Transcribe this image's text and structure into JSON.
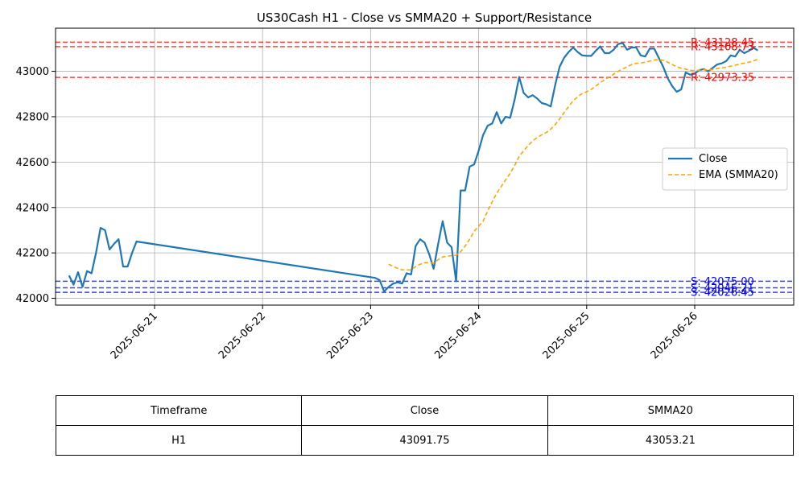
{
  "chart_data": {
    "type": "line",
    "title": "US30Cash H1 - Close vs SMMA20 + Support/Resistance",
    "xlabel": "",
    "ylabel": "",
    "x_range": [
      "2025-06-20T02:00",
      "2025-06-26T22:00"
    ],
    "ylim": [
      41970,
      43190
    ],
    "yticks": [
      42000,
      42200,
      42400,
      42600,
      42800,
      43000
    ],
    "xticks": [
      "2025-06-21",
      "2025-06-22",
      "2025-06-23",
      "2025-06-24",
      "2025-06-25",
      "2025-06-26"
    ],
    "grid": true,
    "legend_position": "center-right",
    "series": [
      {
        "name": "Close",
        "color": "#1f77b4",
        "style": "solid",
        "points": [
          [
            "2025-06-20T05:00",
            42100
          ],
          [
            "2025-06-20T06:00",
            42060
          ],
          [
            "2025-06-20T07:00",
            42115
          ],
          [
            "2025-06-20T08:00",
            42050
          ],
          [
            "2025-06-20T09:00",
            42120
          ],
          [
            "2025-06-20T10:00",
            42110
          ],
          [
            "2025-06-20T11:00",
            42200
          ],
          [
            "2025-06-20T12:00",
            42310
          ],
          [
            "2025-06-20T13:00",
            42300
          ],
          [
            "2025-06-20T14:00",
            42215
          ],
          [
            "2025-06-20T15:00",
            42240
          ],
          [
            "2025-06-20T16:00",
            42260
          ],
          [
            "2025-06-20T17:00",
            42140
          ],
          [
            "2025-06-20T18:00",
            42140
          ],
          [
            "2025-06-20T19:00",
            42200
          ],
          [
            "2025-06-20T20:00",
            42250
          ],
          [
            "2025-06-23T01:00",
            42090
          ],
          [
            "2025-06-23T02:00",
            42080
          ],
          [
            "2025-06-23T03:00",
            42030
          ],
          [
            "2025-06-23T04:00",
            42050
          ],
          [
            "2025-06-23T05:00",
            42065
          ],
          [
            "2025-06-23T06:00",
            42070
          ],
          [
            "2025-06-23T07:00",
            42065
          ],
          [
            "2025-06-23T08:00",
            42110
          ],
          [
            "2025-06-23T09:00",
            42105
          ],
          [
            "2025-06-23T10:00",
            42230
          ],
          [
            "2025-06-23T11:00",
            42260
          ],
          [
            "2025-06-23T12:00",
            42245
          ],
          [
            "2025-06-23T13:00",
            42195
          ],
          [
            "2025-06-23T14:00",
            42130
          ],
          [
            "2025-06-23T15:00",
            42240
          ],
          [
            "2025-06-23T16:00",
            42340
          ],
          [
            "2025-06-23T17:00",
            42245
          ],
          [
            "2025-06-23T18:00",
            42225
          ],
          [
            "2025-06-23T19:00",
            42075
          ],
          [
            "2025-06-23T20:00",
            42475
          ],
          [
            "2025-06-23T21:00",
            42475
          ],
          [
            "2025-06-23T22:00",
            42580
          ],
          [
            "2025-06-23T23:00",
            42590
          ],
          [
            "2025-06-24T00:00",
            42650
          ],
          [
            "2025-06-24T01:00",
            42720
          ],
          [
            "2025-06-24T02:00",
            42760
          ],
          [
            "2025-06-24T03:00",
            42770
          ],
          [
            "2025-06-24T04:00",
            42820
          ],
          [
            "2025-06-24T05:00",
            42770
          ],
          [
            "2025-06-24T06:00",
            42800
          ],
          [
            "2025-06-24T07:00",
            42795
          ],
          [
            "2025-06-24T08:00",
            42875
          ],
          [
            "2025-06-24T09:00",
            42975
          ],
          [
            "2025-06-24T10:00",
            42905
          ],
          [
            "2025-06-24T11:00",
            42885
          ],
          [
            "2025-06-24T12:00",
            42895
          ],
          [
            "2025-06-24T13:00",
            42880
          ],
          [
            "2025-06-24T14:00",
            42860
          ],
          [
            "2025-06-24T15:00",
            42855
          ],
          [
            "2025-06-24T16:00",
            42845
          ],
          [
            "2025-06-24T17:00",
            42940
          ],
          [
            "2025-06-24T18:00",
            43020
          ],
          [
            "2025-06-24T19:00",
            43060
          ],
          [
            "2025-06-24T20:00",
            43085
          ],
          [
            "2025-06-24T21:00",
            43105
          ],
          [
            "2025-06-24T22:00",
            43085
          ],
          [
            "2025-06-24T23:00",
            43070
          ],
          [
            "2025-06-25T00:00",
            43068
          ],
          [
            "2025-06-25T01:00",
            43068
          ],
          [
            "2025-06-25T02:00",
            43090
          ],
          [
            "2025-06-25T03:00",
            43110
          ],
          [
            "2025-06-25T04:00",
            43080
          ],
          [
            "2025-06-25T05:00",
            43080
          ],
          [
            "2025-06-25T06:00",
            43095
          ],
          [
            "2025-06-25T07:00",
            43120
          ],
          [
            "2025-06-25T08:00",
            43125
          ],
          [
            "2025-06-25T09:00",
            43095
          ],
          [
            "2025-06-25T10:00",
            43105
          ],
          [
            "2025-06-25T11:00",
            43105
          ],
          [
            "2025-06-25T12:00",
            43070
          ],
          [
            "2025-06-25T13:00",
            43065
          ],
          [
            "2025-06-25T14:00",
            43100
          ],
          [
            "2025-06-25T15:00",
            43100
          ],
          [
            "2025-06-25T16:00",
            43060
          ],
          [
            "2025-06-25T17:00",
            43020
          ],
          [
            "2025-06-25T18:00",
            42970
          ],
          [
            "2025-06-25T19:00",
            42935
          ],
          [
            "2025-06-25T20:00",
            42910
          ],
          [
            "2025-06-25T21:00",
            42920
          ],
          [
            "2025-06-25T22:00",
            42995
          ],
          [
            "2025-06-25T23:00",
            42985
          ],
          [
            "2025-06-26T00:00",
            42990
          ],
          [
            "2025-06-26T01:00",
            43005
          ],
          [
            "2025-06-26T02:00",
            43010
          ],
          [
            "2025-06-26T03:00",
            43000
          ],
          [
            "2025-06-26T04:00",
            43015
          ],
          [
            "2025-06-26T05:00",
            43030
          ],
          [
            "2025-06-26T06:00",
            43035
          ],
          [
            "2025-06-26T07:00",
            43045
          ],
          [
            "2025-06-26T08:00",
            43070
          ],
          [
            "2025-06-26T09:00",
            43065
          ],
          [
            "2025-06-26T10:00",
            43095
          ],
          [
            "2025-06-26T11:00",
            43080
          ],
          [
            "2025-06-26T12:00",
            43090
          ],
          [
            "2025-06-26T13:00",
            43105
          ],
          [
            "2025-06-26T14:00",
            43091.75
          ]
        ]
      },
      {
        "name": "EMA (SMMA20)",
        "color": "#ffa500",
        "style": "dashed",
        "points": [
          [
            "2025-06-23T04:00",
            42150
          ],
          [
            "2025-06-23T05:00",
            42140
          ],
          [
            "2025-06-23T06:00",
            42132
          ],
          [
            "2025-06-23T07:00",
            42125
          ],
          [
            "2025-06-23T08:00",
            42125
          ],
          [
            "2025-06-23T09:00",
            42125
          ],
          [
            "2025-06-23T10:00",
            42140
          ],
          [
            "2025-06-23T11:00",
            42150
          ],
          [
            "2025-06-23T12:00",
            42157
          ],
          [
            "2025-06-23T13:00",
            42157
          ],
          [
            "2025-06-23T14:00",
            42155
          ],
          [
            "2025-06-23T15:00",
            42170
          ],
          [
            "2025-06-23T16:00",
            42182
          ],
          [
            "2025-06-23T17:00",
            42185
          ],
          [
            "2025-06-23T18:00",
            42188
          ],
          [
            "2025-06-23T19:00",
            42190
          ],
          [
            "2025-06-23T20:00",
            42205
          ],
          [
            "2025-06-23T21:00",
            42230
          ],
          [
            "2025-06-23T22:00",
            42260
          ],
          [
            "2025-06-23T23:00",
            42295
          ],
          [
            "2025-06-24T00:00",
            42318
          ],
          [
            "2025-06-24T01:00",
            42340
          ],
          [
            "2025-06-24T02:00",
            42385
          ],
          [
            "2025-06-24T03:00",
            42425
          ],
          [
            "2025-06-24T04:00",
            42463
          ],
          [
            "2025-06-24T05:00",
            42492
          ],
          [
            "2025-06-24T06:00",
            42522
          ],
          [
            "2025-06-24T07:00",
            42550
          ],
          [
            "2025-06-24T08:00",
            42585
          ],
          [
            "2025-06-24T09:00",
            42625
          ],
          [
            "2025-06-24T10:00",
            42650
          ],
          [
            "2025-06-24T11:00",
            42673
          ],
          [
            "2025-06-24T12:00",
            42693
          ],
          [
            "2025-06-24T13:00",
            42708
          ],
          [
            "2025-06-24T14:00",
            42720
          ],
          [
            "2025-06-24T15:00",
            42730
          ],
          [
            "2025-06-24T16:00",
            42745
          ],
          [
            "2025-06-24T17:00",
            42765
          ],
          [
            "2025-06-24T18:00",
            42790
          ],
          [
            "2025-06-24T19:00",
            42818
          ],
          [
            "2025-06-24T20:00",
            42845
          ],
          [
            "2025-06-24T21:00",
            42870
          ],
          [
            "2025-06-24T22:00",
            42888
          ],
          [
            "2025-06-24T23:00",
            42902
          ],
          [
            "2025-06-25T00:00",
            42910
          ],
          [
            "2025-06-25T01:00",
            42920
          ],
          [
            "2025-06-25T02:00",
            42935
          ],
          [
            "2025-06-25T03:00",
            42950
          ],
          [
            "2025-06-25T04:00",
            42963
          ],
          [
            "2025-06-25T05:00",
            42975
          ],
          [
            "2025-06-25T06:00",
            42987
          ],
          [
            "2025-06-25T07:00",
            43000
          ],
          [
            "2025-06-25T08:00",
            43010
          ],
          [
            "2025-06-25T09:00",
            43020
          ],
          [
            "2025-06-25T10:00",
            43030
          ],
          [
            "2025-06-25T11:00",
            43035
          ],
          [
            "2025-06-25T12:00",
            43037
          ],
          [
            "2025-06-25T13:00",
            43040
          ],
          [
            "2025-06-25T14:00",
            43045
          ],
          [
            "2025-06-25T15:00",
            43050
          ],
          [
            "2025-06-25T16:00",
            43052
          ],
          [
            "2025-06-25T17:00",
            43048
          ],
          [
            "2025-06-25T18:00",
            43040
          ],
          [
            "2025-06-25T19:00",
            43030
          ],
          [
            "2025-06-25T20:00",
            43020
          ],
          [
            "2025-06-25T21:00",
            43013
          ],
          [
            "2025-06-25T22:00",
            43010
          ],
          [
            "2025-06-25T23:00",
            43005
          ],
          [
            "2025-06-26T00:00",
            43002
          ],
          [
            "2025-06-26T01:00",
            43005
          ],
          [
            "2025-06-26T02:00",
            43007
          ],
          [
            "2025-06-26T03:00",
            43005
          ],
          [
            "2025-06-26T04:00",
            43008
          ],
          [
            "2025-06-26T05:00",
            43012
          ],
          [
            "2025-06-26T06:00",
            43015
          ],
          [
            "2025-06-26T07:00",
            43018
          ],
          [
            "2025-06-26T08:00",
            43023
          ],
          [
            "2025-06-26T09:00",
            43027
          ],
          [
            "2025-06-26T10:00",
            43032
          ],
          [
            "2025-06-26T11:00",
            43036
          ],
          [
            "2025-06-26T12:00",
            43040
          ],
          [
            "2025-06-26T13:00",
            43045
          ],
          [
            "2025-06-26T14:00",
            43053.21
          ]
        ]
      }
    ],
    "resistance_levels": [
      {
        "label": "R: 43128.45",
        "value": 43128.45
      },
      {
        "label": "R: 43108.73",
        "value": 43108.73
      },
      {
        "label": "R: 42973.35",
        "value": 42973.35
      }
    ],
    "support_levels": [
      {
        "label": "S: 42075.00",
        "value": 42075.0
      },
      {
        "label": "S: 42046.21",
        "value": 42046.21
      },
      {
        "label": "S: 42026.45",
        "value": 42026.45
      }
    ],
    "resistance_color": "#ff0000",
    "support_color": "#0000ff"
  },
  "table": {
    "headers": [
      "Timeframe",
      "Close",
      "SMMA20"
    ],
    "rows": [
      [
        "H1",
        "43091.75",
        "43053.21"
      ]
    ]
  }
}
